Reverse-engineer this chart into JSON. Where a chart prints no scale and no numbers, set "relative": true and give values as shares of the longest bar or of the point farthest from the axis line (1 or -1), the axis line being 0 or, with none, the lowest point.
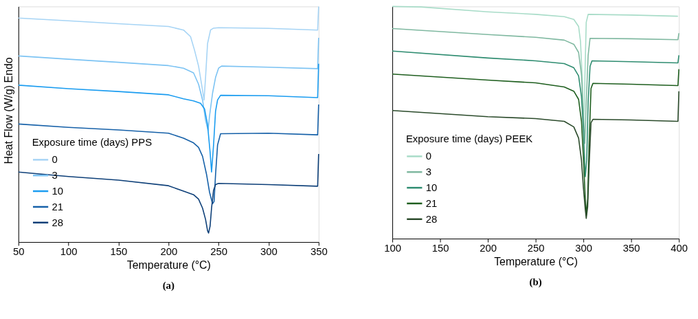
{
  "chart_data": [
    {
      "type": "line",
      "relative": true,
      "xlabel": "Temperature (°C)",
      "ylabel": "Heat Flow (W/g)",
      "legend_title": "Exposure time (days) PPS",
      "legend": "bottom left",
      "grid": false,
      "tick_labels": "x",
      "xlim": [
        50,
        350
      ],
      "xticks": [
        50,
        100,
        150,
        200,
        250,
        300,
        350
      ],
      "annotations": [
        "Endo",
        "(a)"
      ],
      "series": [
        {
          "name": "0",
          "color": "#a6d4f5",
          "x": [
            50,
            100,
            150,
            200,
            215,
            222,
            226,
            230,
            233,
            235.5,
            237,
            239,
            242,
            245,
            250,
            300,
            349,
            350
          ],
          "values": [
            0.951,
            0.939,
            0.927,
            0.915,
            0.9,
            0.872,
            0.814,
            0.747,
            0.67,
            0.603,
            0.699,
            0.843,
            0.9,
            0.908,
            0.91,
            0.907,
            0.9,
            1.0
          ]
        },
        {
          "name": "3",
          "color": "#7cc3f3",
          "x": [
            50,
            100,
            150,
            200,
            215,
            225,
            230,
            234,
            237,
            239.5,
            241,
            244,
            247,
            250,
            253,
            300,
            349,
            350
          ],
          "values": [
            0.79,
            0.776,
            0.763,
            0.749,
            0.738,
            0.718,
            0.67,
            0.603,
            0.517,
            0.474,
            0.536,
            0.632,
            0.699,
            0.738,
            0.747,
            0.742,
            0.736,
            0.867
          ]
        },
        {
          "name": "10",
          "color": "#1a9cf0",
          "x": [
            50,
            100,
            150,
            200,
            215,
            225,
            232,
            236,
            239,
            241.5,
            243,
            245,
            247,
            249,
            252,
            300,
            349,
            350
          ],
          "values": [
            0.666,
            0.651,
            0.639,
            0.625,
            0.608,
            0.599,
            0.589,
            0.565,
            0.498,
            0.383,
            0.297,
            0.412,
            0.556,
            0.603,
            0.623,
            0.621,
            0.613,
            0.757
          ]
        },
        {
          "name": "21",
          "color": "#1560a8",
          "x": [
            50,
            100,
            150,
            200,
            215,
            225,
            230,
            234,
            238,
            241,
            244,
            245.5,
            247,
            249,
            252,
            300,
            349,
            350
          ],
          "values": [
            0.501,
            0.487,
            0.476,
            0.462,
            0.441,
            0.421,
            0.402,
            0.364,
            0.287,
            0.211,
            0.163,
            0.172,
            0.287,
            0.412,
            0.46,
            0.462,
            0.455,
            0.584
          ]
        },
        {
          "name": "28",
          "color": "#0d3f78",
          "x": [
            50,
            100,
            150,
            200,
            215,
            225,
            230,
            234,
            237,
            239,
            240,
            241.5,
            243,
            245,
            247,
            250,
            300,
            349,
            350
          ],
          "values": [
            0.297,
            0.278,
            0.263,
            0.239,
            0.216,
            0.201,
            0.182,
            0.144,
            0.096,
            0.048,
            0.038,
            0.067,
            0.144,
            0.22,
            0.244,
            0.249,
            0.244,
            0.237,
            0.374
          ]
        }
      ]
    },
    {
      "type": "line",
      "relative": true,
      "xlabel": "Temperature (°C)",
      "legend_title": "Exposure time (days) PEEK",
      "legend": "bottom left",
      "grid": false,
      "tick_labels": "x",
      "xlim": [
        100,
        400
      ],
      "xticks": [
        100,
        150,
        200,
        250,
        300,
        350,
        400
      ],
      "annotations": [
        "(b)"
      ],
      "series": [
        {
          "name": "0",
          "color": "#a8dcc8",
          "x": [
            100,
            130,
            200,
            250,
            280,
            290,
            295,
            297,
            299,
            300,
            301,
            302,
            303,
            305,
            350,
            399
          ],
          "values": [
            1.0,
            0.998,
            0.977,
            0.966,
            0.956,
            0.944,
            0.914,
            0.849,
            0.671,
            0.481,
            0.576,
            0.766,
            0.932,
            0.966,
            0.963,
            0.958
          ]
        },
        {
          "name": "3",
          "color": "#7fb8a0",
          "x": [
            100,
            200,
            250,
            280,
            290,
            295,
            298,
            300,
            301.5,
            303,
            305,
            307,
            350,
            399,
            400
          ],
          "values": [
            0.905,
            0.879,
            0.867,
            0.855,
            0.837,
            0.802,
            0.707,
            0.529,
            0.41,
            0.588,
            0.79,
            0.863,
            0.861,
            0.857,
            0.885
          ]
        },
        {
          "name": "10",
          "color": "#2e8c70",
          "x": [
            100,
            200,
            250,
            280,
            290,
            295,
            298,
            300,
            302,
            303.5,
            305,
            307,
            309,
            350,
            399,
            400
          ],
          "values": [
            0.808,
            0.778,
            0.766,
            0.754,
            0.736,
            0.701,
            0.612,
            0.469,
            0.267,
            0.338,
            0.588,
            0.742,
            0.766,
            0.762,
            0.757,
            0.79
          ]
        },
        {
          "name": "21",
          "color": "#1e5e1e",
          "x": [
            100,
            200,
            250,
            280,
            290,
            295,
            298,
            300,
            302,
            303,
            304.5,
            306,
            308,
            310,
            350,
            399,
            400
          ],
          "values": [
            0.709,
            0.683,
            0.671,
            0.653,
            0.635,
            0.6,
            0.505,
            0.35,
            0.172,
            0.101,
            0.172,
            0.41,
            0.647,
            0.669,
            0.665,
            0.659,
            0.73
          ]
        },
        {
          "name": "28",
          "color": "#2a4a2a",
          "x": [
            100,
            200,
            250,
            280,
            290,
            295,
            298,
            300,
            302,
            303,
            304.5,
            306,
            308,
            310,
            350,
            399,
            400
          ],
          "values": [
            0.552,
            0.525,
            0.517,
            0.505,
            0.481,
            0.433,
            0.338,
            0.22,
            0.125,
            0.087,
            0.137,
            0.315,
            0.499,
            0.514,
            0.511,
            0.505,
            0.635
          ]
        }
      ]
    }
  ]
}
